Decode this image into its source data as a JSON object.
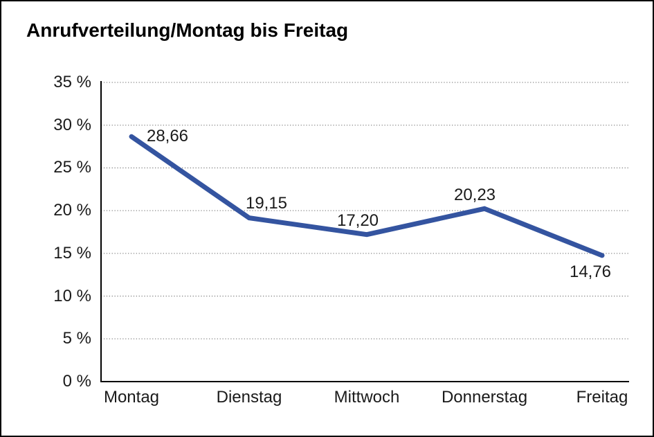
{
  "chart_data": {
    "type": "line",
    "title": "Anrufverteilung/Montag bis Freitag",
    "categories": [
      "Montag",
      "Dienstag",
      "Mittwoch",
      "Donnerstag",
      "Freitag"
    ],
    "series": [
      {
        "name": "Anrufverteilung",
        "values": [
          28.66,
          19.15,
          17.2,
          20.23,
          14.76
        ]
      }
    ],
    "value_labels": [
      "28,66",
      "19,15",
      "17,20",
      "20,23",
      "14,76"
    ],
    "ytick_values": [
      0,
      5,
      10,
      15,
      20,
      25,
      30,
      35
    ],
    "ytick_labels": [
      "0 %",
      "5 %",
      "10 %",
      "15 %",
      "20 %",
      "25 %",
      "30 %",
      "35 %"
    ],
    "ylim": [
      0,
      35
    ],
    "xlabel": "",
    "ylabel": "",
    "grid": "horizontal-dotted",
    "legend_position": "none",
    "colors": {
      "line": "#3454A0",
      "gridline": "#8a8a8a",
      "axis": "#000000",
      "text": "#1a1a1a",
      "frame_border": "#000000",
      "background": "#ffffff"
    }
  }
}
